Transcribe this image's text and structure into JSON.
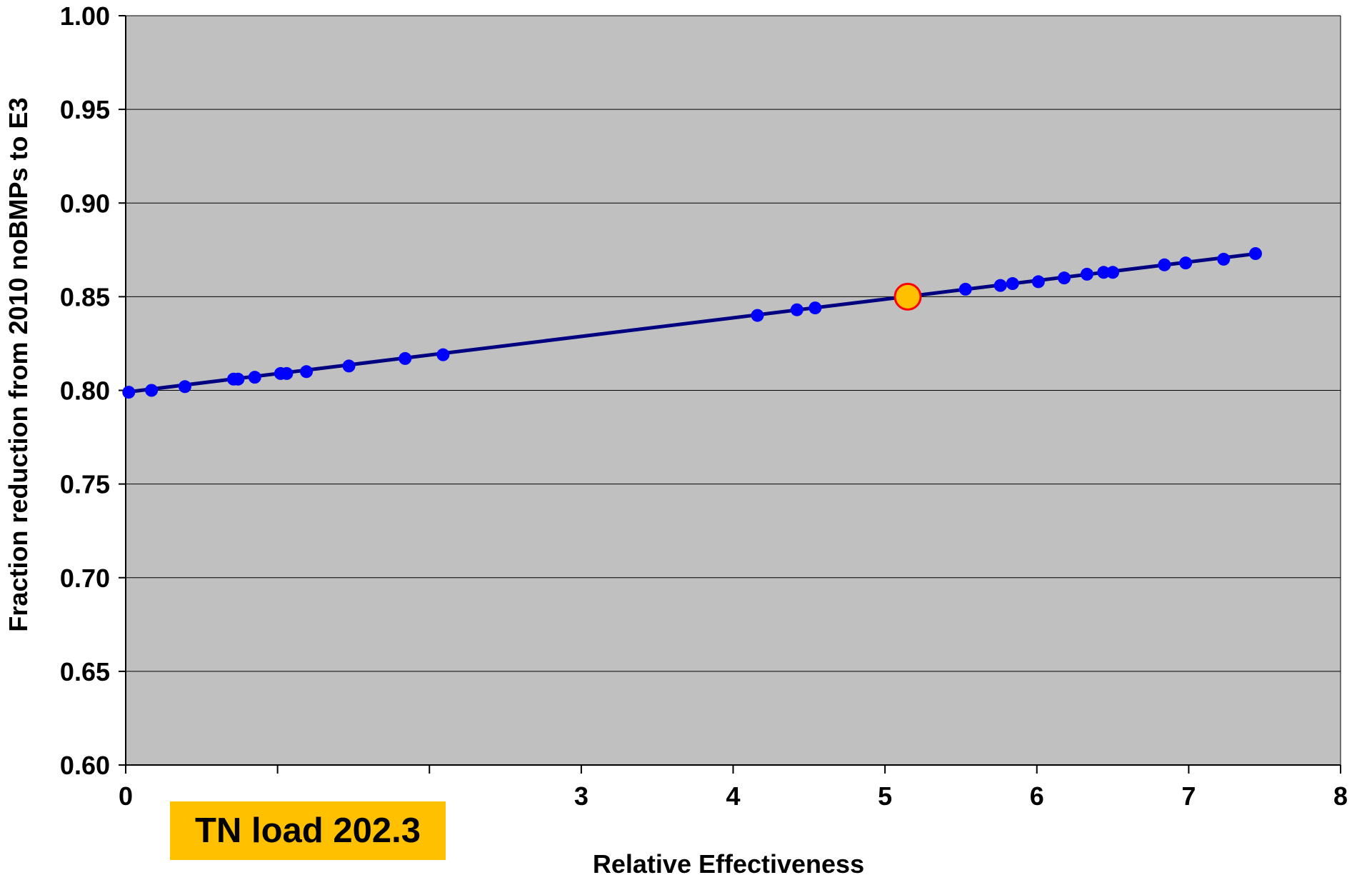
{
  "chart_data": {
    "type": "scatter",
    "title": "",
    "xlabel": "Relative Effectiveness",
    "ylabel": "Fraction reduction from 2010 noBMPs to E3",
    "xlim": [
      0,
      8
    ],
    "ylim": [
      0.6,
      1.0
    ],
    "x_ticks": [
      0,
      1,
      2,
      3,
      4,
      5,
      6,
      7,
      8
    ],
    "x_tick_labels": [
      "0",
      "",
      "",
      "3",
      "4",
      "5",
      "6",
      "7",
      "8"
    ],
    "y_ticks": [
      0.6,
      0.65,
      0.7,
      0.75,
      0.8,
      0.85,
      0.9,
      0.95,
      1.0
    ],
    "y_tick_labels": [
      "0.60",
      "0.65",
      "0.70",
      "0.75",
      "0.80",
      "0.85",
      "0.90",
      "0.95",
      "1.00"
    ],
    "grid": "horizontal",
    "plot_background": "#c0c0c0",
    "series": [
      {
        "type": "scatter",
        "color": "#0000ff",
        "line_color": "#000080",
        "points": [
          [
            0.02,
            0.799
          ],
          [
            0.17,
            0.8
          ],
          [
            0.39,
            0.802
          ],
          [
            0.71,
            0.806
          ],
          [
            0.74,
            0.806
          ],
          [
            0.85,
            0.807
          ],
          [
            1.02,
            0.809
          ],
          [
            1.06,
            0.809
          ],
          [
            1.19,
            0.81
          ],
          [
            1.47,
            0.813
          ],
          [
            1.84,
            0.817
          ],
          [
            2.09,
            0.819
          ],
          [
            4.16,
            0.84
          ],
          [
            4.42,
            0.843
          ],
          [
            4.54,
            0.844
          ],
          [
            5.53,
            0.854
          ],
          [
            5.76,
            0.856
          ],
          [
            5.84,
            0.857
          ],
          [
            6.01,
            0.858
          ],
          [
            6.18,
            0.86
          ],
          [
            6.33,
            0.862
          ],
          [
            6.44,
            0.863
          ],
          [
            6.5,
            0.863
          ],
          [
            6.84,
            0.867
          ],
          [
            6.98,
            0.868
          ],
          [
            7.23,
            0.87
          ],
          [
            7.44,
            0.873
          ]
        ]
      },
      {
        "type": "highlight",
        "color": "#ffc000",
        "edge_color": "#ff0000",
        "points": [
          [
            5.15,
            0.85
          ]
        ]
      }
    ],
    "trendline": {
      "from": [
        0,
        0.799
      ],
      "to": [
        7.45,
        0.873
      ],
      "color": "#000080"
    },
    "annotation": {
      "text": "TN load 202.3",
      "background": "#ffc000"
    }
  }
}
